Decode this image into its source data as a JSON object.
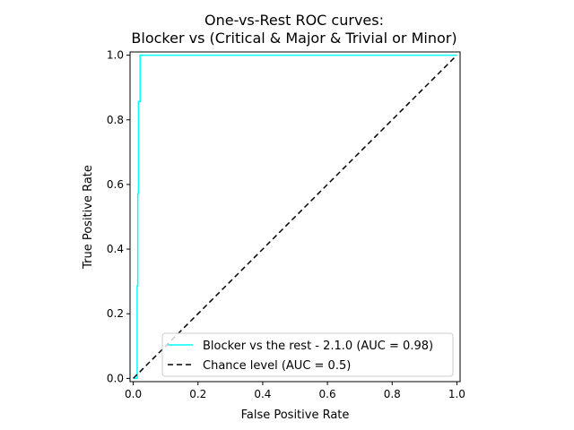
{
  "chart_data": {
    "type": "line",
    "title_line1": "One-vs-Rest ROC curves:",
    "title_line2": "Blocker vs (Critical & Major & Trivial or Minor)",
    "xlabel": "False Positive Rate",
    "ylabel": "True Positive Rate",
    "xlim": [
      -0.01,
      1.01
    ],
    "ylim": [
      -0.01,
      1.01
    ],
    "xticks": [
      "0.0",
      "0.2",
      "0.4",
      "0.6",
      "0.8",
      "1.0"
    ],
    "yticks": [
      "0.0",
      "0.2",
      "0.4",
      "0.6",
      "0.8",
      "1.0"
    ],
    "grid": false,
    "legend_position": "lower-right",
    "series": [
      {
        "name": "Blocker vs the rest - 2.1.0 (AUC = 0.98)",
        "color": "#00ffff",
        "style": "solid",
        "x": [
          0.0,
          0.0,
          0.012,
          0.012,
          0.014,
          0.014,
          0.016,
          0.016,
          0.018,
          0.018,
          0.021,
          0.021,
          1.0
        ],
        "y": [
          0.0,
          0.0,
          0.0,
          0.286,
          0.286,
          0.571,
          0.571,
          0.857,
          0.857,
          0.857,
          0.857,
          1.0,
          1.0
        ]
      },
      {
        "name": "Chance level (AUC = 0.5)",
        "color": "#000000",
        "style": "dashed",
        "x": [
          0.0,
          1.0
        ],
        "y": [
          0.0,
          1.0
        ]
      }
    ]
  }
}
